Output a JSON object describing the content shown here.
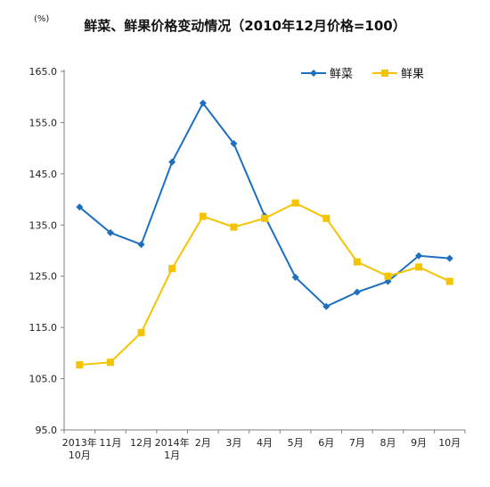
{
  "chart_data": {
    "type": "line",
    "title": "鲜菜、鲜果价格变动情况（2010年12月价格=100）",
    "unit_label": "(%)",
    "categories": [
      [
        "2013年",
        "10月"
      ],
      [
        "11月"
      ],
      [
        "12月"
      ],
      [
        "2014年",
        "1月"
      ],
      [
        "2月"
      ],
      [
        "3月"
      ],
      [
        "4月"
      ],
      [
        "5月"
      ],
      [
        "6月"
      ],
      [
        "7月"
      ],
      [
        "8月"
      ],
      [
        "9月"
      ],
      [
        "10月"
      ]
    ],
    "ylim": [
      95.0,
      165.0
    ],
    "yticks": [
      "95.0",
      "105.0",
      "115.0",
      "125.0",
      "135.0",
      "145.0",
      "155.0",
      "165.0"
    ],
    "grid": false,
    "legend_position": "top-right",
    "series": [
      {
        "name": "鲜菜",
        "color": "#1f6fc1",
        "marker": "diamond",
        "values": [
          138.5,
          133.5,
          131.2,
          147.3,
          158.8,
          150.9,
          136.8,
          124.8,
          119.1,
          121.9,
          124.0,
          129.0,
          128.5
        ]
      },
      {
        "name": "鲜果",
        "color": "#f5c400",
        "marker": "square",
        "values": [
          107.7,
          108.2,
          114.0,
          126.5,
          136.7,
          134.6,
          136.3,
          139.3,
          136.3,
          127.8,
          125.0,
          126.8,
          124.0
        ]
      }
    ]
  }
}
